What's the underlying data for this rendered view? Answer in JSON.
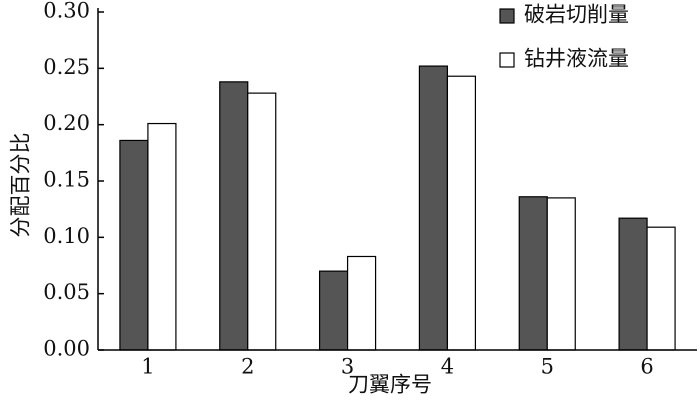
{
  "chart_data": {
    "type": "bar",
    "x_label": "刀翼序号",
    "y_label": "分配百分比",
    "categories": [
      "1",
      "2",
      "3",
      "4",
      "5",
      "6"
    ],
    "series": [
      {
        "name": "破岩切削量",
        "color": "#555555",
        "values": [
          0.186,
          0.238,
          0.07,
          0.252,
          0.136,
          0.117
        ]
      },
      {
        "name": "钻井液流量",
        "color": "#ffffff",
        "values": [
          0.201,
          0.228,
          0.083,
          0.243,
          0.135,
          0.109
        ]
      }
    ],
    "ylim": [
      0,
      0.3
    ],
    "yticks": [
      {
        "value": 0,
        "label": "0.00"
      },
      {
        "value": 0.05,
        "label": "0.05"
      },
      {
        "value": 0.1,
        "label": "0.10"
      },
      {
        "value": 0.15,
        "label": "0.15"
      },
      {
        "value": 0.2,
        "label": "0.20"
      },
      {
        "value": 0.25,
        "label": "0.25"
      },
      {
        "value": 0.3,
        "label": "0.30"
      }
    ],
    "legend": "top-right"
  }
}
